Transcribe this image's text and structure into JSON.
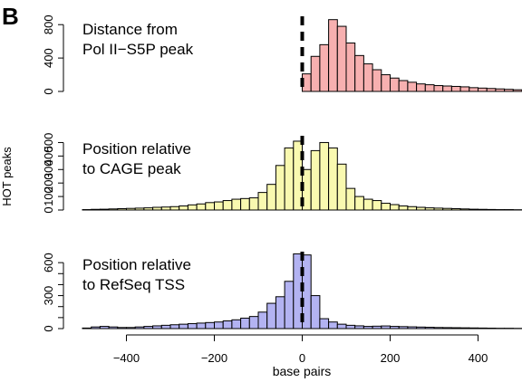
{
  "panel_label": "B",
  "chart_data": {
    "type": "bar",
    "panel_label": "B",
    "ylabel": "HOT peaks",
    "xlabel": "base pairs",
    "xlim": [
      -500,
      500
    ],
    "xticks": [
      -400,
      -200,
      0,
      200,
      400
    ],
    "xtick_labels": [
      "−400",
      "−200",
      "0",
      "200",
      "400"
    ],
    "bin_width": 20,
    "bin_starts": [
      -500,
      -480,
      -460,
      -440,
      -420,
      -400,
      -380,
      -360,
      -340,
      -320,
      -300,
      -280,
      -260,
      -240,
      -220,
      -200,
      -180,
      -160,
      -140,
      -120,
      -100,
      -80,
      -60,
      -40,
      -20,
      0,
      20,
      40,
      60,
      80,
      100,
      120,
      140,
      160,
      180,
      200,
      220,
      240,
      260,
      280,
      300,
      320,
      340,
      360,
      380,
      400,
      420,
      440,
      460,
      480
    ],
    "reference_line_x": 0,
    "panels": [
      {
        "id": "pol2",
        "annotation": [
          "Distance from",
          "Pol II−S5P peak"
        ],
        "color": "#f7b0b0",
        "ylim": [
          0,
          900
        ],
        "yticks": [
          0,
          400,
          800
        ],
        "values": [
          0,
          0,
          0,
          0,
          0,
          0,
          0,
          0,
          0,
          0,
          0,
          0,
          0,
          0,
          0,
          0,
          0,
          0,
          0,
          0,
          0,
          0,
          0,
          0,
          0,
          210,
          420,
          560,
          860,
          780,
          580,
          430,
          330,
          260,
          200,
          160,
          130,
          110,
          90,
          80,
          70,
          65,
          60,
          55,
          45,
          40,
          35,
          30,
          25,
          20
        ]
      },
      {
        "id": "cage",
        "annotation": [
          "Position relative",
          "to CAGE peak"
        ],
        "color": "#f9f9b0",
        "ylim": [
          0,
          550
        ],
        "yticks": [
          0,
          100,
          200,
          300,
          400,
          500
        ],
        "values": [
          3,
          5,
          6,
          8,
          10,
          12,
          14,
          16,
          20,
          22,
          25,
          30,
          38,
          45,
          55,
          60,
          70,
          80,
          85,
          90,
          130,
          190,
          330,
          460,
          510,
          300,
          440,
          500,
          460,
          340,
          160,
          100,
          80,
          70,
          50,
          40,
          30,
          25,
          20,
          16,
          14,
          12,
          10,
          8,
          6,
          5,
          4,
          3,
          3,
          2
        ]
      },
      {
        "id": "refseq",
        "annotation": [
          "Position relative",
          "to RefSeq TSS"
        ],
        "color": "#b3b3f2",
        "ylim": [
          0,
          700
        ],
        "yticks": [
          0,
          300,
          600
        ],
        "yticks_minor": [
          100,
          200,
          400,
          500
        ],
        "values": [
          5,
          15,
          20,
          15,
          10,
          10,
          15,
          20,
          25,
          30,
          35,
          40,
          45,
          50,
          55,
          60,
          70,
          80,
          95,
          110,
          150,
          230,
          290,
          430,
          680,
          670,
          300,
          90,
          60,
          40,
          30,
          25,
          20,
          22,
          24,
          20,
          18,
          16,
          14,
          12,
          10,
          9,
          8,
          7,
          6,
          5,
          4,
          3,
          3,
          2
        ]
      }
    ]
  }
}
